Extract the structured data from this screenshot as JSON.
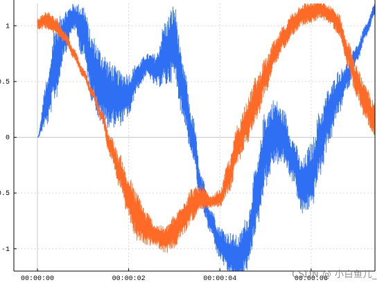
{
  "chart_data": {
    "type": "line",
    "title": "",
    "xlabel": "",
    "ylabel": "",
    "x_range": [
      "00:00:00",
      "00:00:07.4"
    ],
    "ylim": [
      -1.2,
      1.2
    ],
    "x_ticks": [
      "00:00:00",
      "00:00:02",
      "00:00:04",
      "00:00:06"
    ],
    "y_ticks": [
      {
        "value": 1,
        "label": "1"
      },
      {
        "value": 0.5,
        "label": "0.5"
      },
      {
        "value": 0,
        "label": "0"
      },
      {
        "value": -0.5,
        "label": "-0.5"
      },
      {
        "value": -1,
        "label": "-1"
      }
    ],
    "grid": true,
    "legend": "none",
    "series": [
      {
        "color": "#2f6ff3",
        "x": [
          0.0,
          0.2,
          0.4,
          0.6,
          0.8,
          1.0,
          1.2,
          1.4,
          1.6,
          1.8,
          2.0,
          2.2,
          2.4,
          2.6,
          2.8,
          3.0,
          3.2,
          3.4,
          3.6,
          3.8,
          4.0,
          4.2,
          4.4,
          4.6,
          4.8,
          5.0,
          5.2,
          5.4,
          5.6,
          5.8,
          6.0,
          6.2,
          6.4,
          6.6,
          6.8,
          7.0,
          7.2,
          7.4
        ],
        "y": [
          0.0,
          0.3,
          0.68,
          0.95,
          1.08,
          0.95,
          0.62,
          0.45,
          0.38,
          0.35,
          0.38,
          0.55,
          0.65,
          0.6,
          0.75,
          0.85,
          0.4,
          0.0,
          -0.5,
          -0.75,
          -0.95,
          -1.05,
          -1.1,
          -0.95,
          -0.55,
          -0.1,
          0.05,
          0.0,
          -0.2,
          -0.45,
          -0.35,
          -0.05,
          0.2,
          0.4,
          0.55,
          0.75,
          0.95,
          1.15
        ],
        "noise_amplitude": [
          0.0,
          0.2,
          0.35,
          0.2,
          0.12,
          0.25,
          0.3,
          0.35,
          0.3,
          0.25,
          0.2,
          0.12,
          0.1,
          0.15,
          0.3,
          0.35,
          0.25,
          0.2,
          0.15,
          0.12,
          0.15,
          0.2,
          0.22,
          0.25,
          0.3,
          0.35,
          0.3,
          0.25,
          0.2,
          0.25,
          0.3,
          0.3,
          0.25,
          0.2,
          0.12,
          0.08,
          0.06,
          0.05
        ]
      },
      {
        "color": "#ff6a26",
        "x": [
          0.0,
          0.2,
          0.4,
          0.6,
          0.8,
          1.0,
          1.2,
          1.4,
          1.6,
          1.8,
          2.0,
          2.2,
          2.4,
          2.6,
          2.8,
          3.0,
          3.2,
          3.4,
          3.6,
          3.8,
          4.0,
          4.2,
          4.4,
          4.6,
          4.8,
          5.0,
          5.2,
          5.4,
          5.6,
          5.8,
          6.0,
          6.2,
          6.4,
          6.6,
          6.8,
          7.0,
          7.2,
          7.4
        ],
        "y": [
          1.02,
          1.05,
          1.0,
          0.9,
          0.75,
          0.58,
          0.4,
          0.2,
          -0.08,
          -0.3,
          -0.55,
          -0.72,
          -0.82,
          -0.88,
          -0.92,
          -0.85,
          -0.72,
          -0.6,
          -0.55,
          -0.58,
          -0.55,
          -0.35,
          -0.05,
          0.15,
          0.35,
          0.55,
          0.75,
          0.9,
          1.02,
          1.1,
          1.12,
          1.15,
          1.1,
          1.02,
          0.75,
          0.5,
          0.3,
          0.15
        ],
        "noise_amplitude": [
          0.05,
          0.08,
          0.08,
          0.05,
          0.05,
          0.04,
          0.04,
          0.05,
          0.1,
          0.15,
          0.2,
          0.22,
          0.15,
          0.1,
          0.12,
          0.15,
          0.16,
          0.15,
          0.12,
          0.05,
          0.08,
          0.15,
          0.18,
          0.2,
          0.2,
          0.16,
          0.12,
          0.1,
          0.1,
          0.1,
          0.1,
          0.08,
          0.08,
          0.1,
          0.12,
          0.14,
          0.16,
          0.16
        ]
      }
    ]
  },
  "watermark": "CSDN @ 小白鱼儿_"
}
